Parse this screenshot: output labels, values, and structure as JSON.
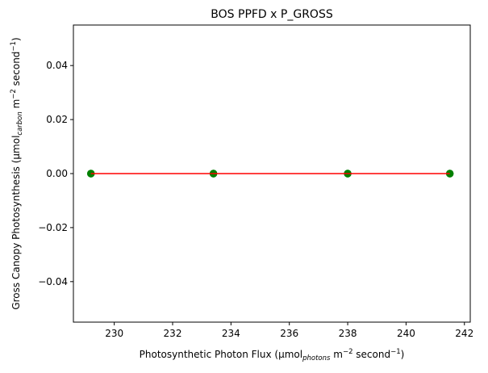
{
  "chart_data": {
    "type": "scatter",
    "title": "BOS PPFD x P_GROSS",
    "xlabel": {
      "main": "Photosynthetic Photon Flux (µmol",
      "sub": "photons",
      "unit": " m",
      "exp1": "−2",
      "mid": " second",
      "exp2": "−1",
      "close": ")"
    },
    "ylabel": {
      "main": "Gross Canopy Photosynthesis (µmol",
      "sub": "carbon",
      "unit": " m",
      "exp1": "−2",
      "mid": " second",
      "exp2": "−1",
      "close": ")"
    },
    "xlim": [
      228.6,
      242.2
    ],
    "ylim": [
      -0.055,
      0.055
    ],
    "xticks": [
      230,
      232,
      234,
      236,
      238,
      240,
      242
    ],
    "yticks": [
      0.04,
      0.02,
      0.0,
      -0.02,
      -0.04
    ],
    "ytick_labels": [
      "0.04",
      "0.02",
      "0.00",
      "−0.02",
      "−0.04"
    ],
    "series": [
      {
        "points_x": [
          229.2,
          229.2,
          233.4,
          233.4,
          238.0,
          238.0,
          241.5,
          241.5
        ],
        "points_y": [
          0,
          0,
          0,
          0,
          0,
          0,
          0,
          0
        ],
        "marker_color": "#008000"
      }
    ],
    "fit_line": {
      "x": [
        229.2,
        241.5
      ],
      "y": [
        0,
        0
      ],
      "color": "#ff0000"
    },
    "grid": false
  }
}
